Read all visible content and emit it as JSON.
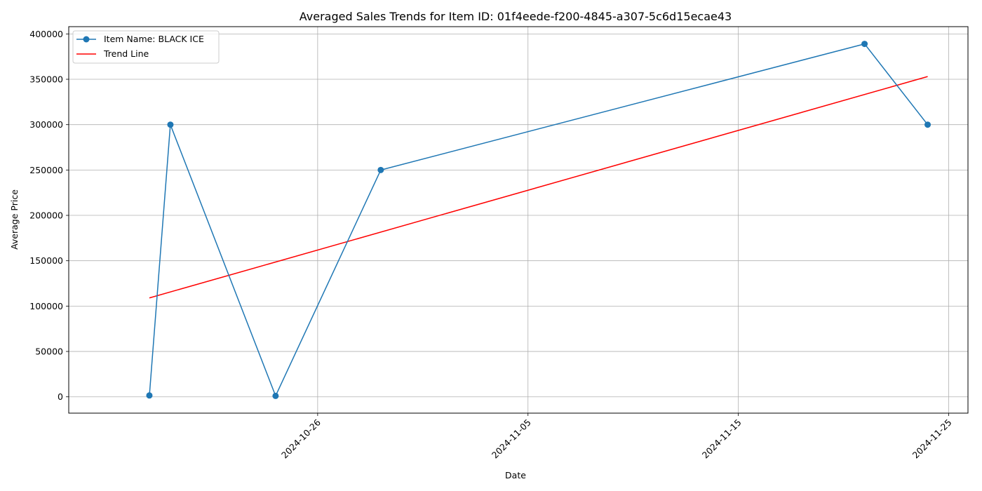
{
  "chart_data": {
    "type": "line",
    "title": "Averaged Sales Trends for Item ID: 01f4eede-f200-4845-a307-5c6d15ecae43",
    "xlabel": "Date",
    "ylabel": "Average Price",
    "x_axis_type": "date",
    "xlim": [
      "2024-10-14T04:00",
      "2024-11-25T22:00"
    ],
    "ylim": [
      -18000,
      408000
    ],
    "x_ticks": [
      "2024-10-26",
      "2024-11-05",
      "2024-11-15",
      "2024-11-25"
    ],
    "y_ticks": [
      0,
      50000,
      100000,
      150000,
      200000,
      250000,
      300000,
      350000,
      400000
    ],
    "grid": true,
    "legend_position": "top-left",
    "series": [
      {
        "name": "Item Name: BLACK ICE",
        "color": "#1f77b4",
        "marker": "circle",
        "points": [
          {
            "x": "2024-10-18",
            "y": 1500
          },
          {
            "x": "2024-10-19",
            "y": 300000
          },
          {
            "x": "2024-10-24",
            "y": 1000
          },
          {
            "x": "2024-10-29",
            "y": 250000
          },
          {
            "x": "2024-11-21",
            "y": 389000
          },
          {
            "x": "2024-11-24",
            "y": 300000
          }
        ]
      },
      {
        "name": "Trend Line",
        "color": "#ff0000",
        "marker": "none",
        "points": [
          {
            "x": "2024-10-18",
            "y": 109000
          },
          {
            "x": "2024-11-24",
            "y": 353000
          }
        ]
      }
    ]
  }
}
